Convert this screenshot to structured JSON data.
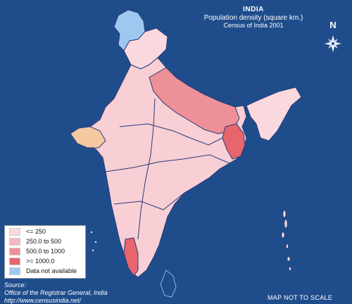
{
  "title": {
    "main": "INDIA",
    "subtitle": "Population density (square km.)",
    "source_line": "Census of India 2001"
  },
  "north_label": "N",
  "legend": {
    "items": [
      {
        "label": "<= 250",
        "color": "#f9d9dd"
      },
      {
        "label": "250.0 to 500",
        "color": "#f5b8bf"
      },
      {
        "label": "500.0 to 1000",
        "color": "#ee9097"
      },
      {
        "label": ">= 1000.0",
        "color": "#e7656d"
      },
      {
        "label": "Data not available",
        "color": "#9ec8f0"
      }
    ]
  },
  "source": {
    "heading": "Source:",
    "org": "Office of the Registrar General, India",
    "url": "http://www.censusindia.net/"
  },
  "scale_note": "MAP NOT TO SCALE",
  "colors": {
    "background": "#1f4d8c",
    "border": "#2b3a7a",
    "low_density": "#f9d9dd",
    "high_density": "#e7656d",
    "no_data": "#9ec8f0",
    "gujarat_highlight": "#f5c9a0"
  }
}
